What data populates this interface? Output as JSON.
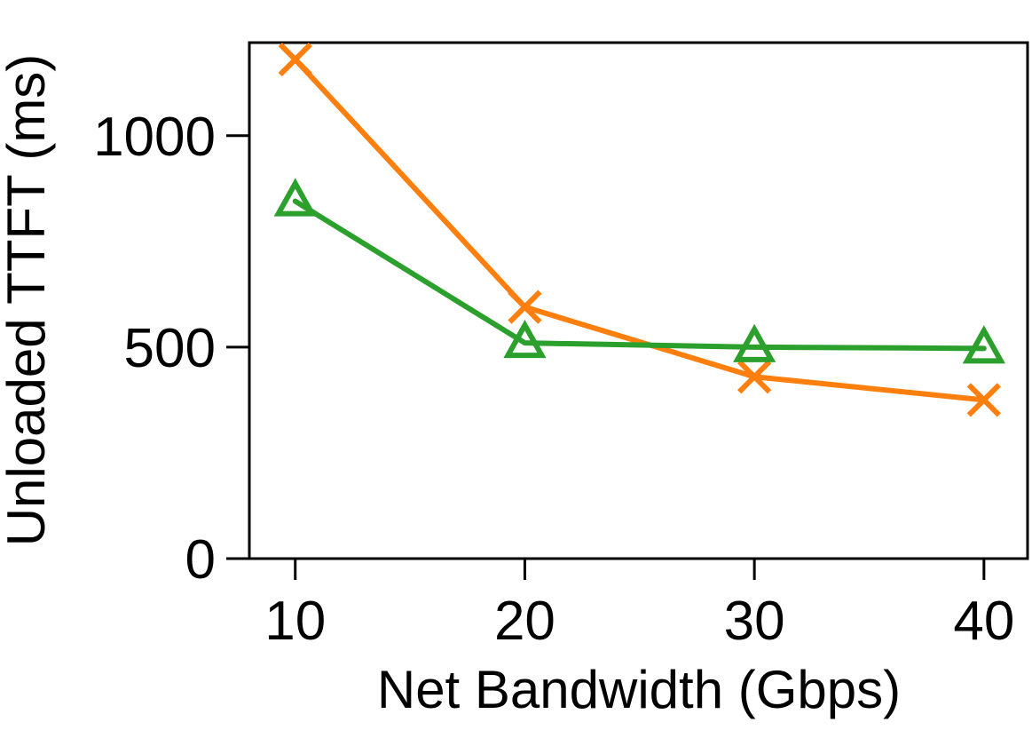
{
  "chart_data": {
    "type": "line",
    "title": "",
    "xlabel": "Net Bandwidth (Gbps)",
    "ylabel": "Unloaded TTFT (ms)",
    "x": [
      10,
      20,
      30,
      40
    ],
    "x_tick_labels": [
      "10",
      "20",
      "30",
      "40"
    ],
    "xlim": [
      8,
      41.9
    ],
    "ylim": [
      0,
      1220
    ],
    "y_ticks": [
      0,
      500,
      1000
    ],
    "y_tick_labels": [
      "0",
      "500",
      "1000"
    ],
    "grid": false,
    "legend": "none",
    "series": [
      {
        "name": "series-orange",
        "marker": "x",
        "color": "#ff7f0e",
        "values": [
          1180,
          595,
          430,
          375
        ]
      },
      {
        "name": "series-green",
        "marker": "triangle-open",
        "color": "#2ca02c",
        "values": [
          845,
          510,
          500,
          497
        ]
      }
    ]
  }
}
